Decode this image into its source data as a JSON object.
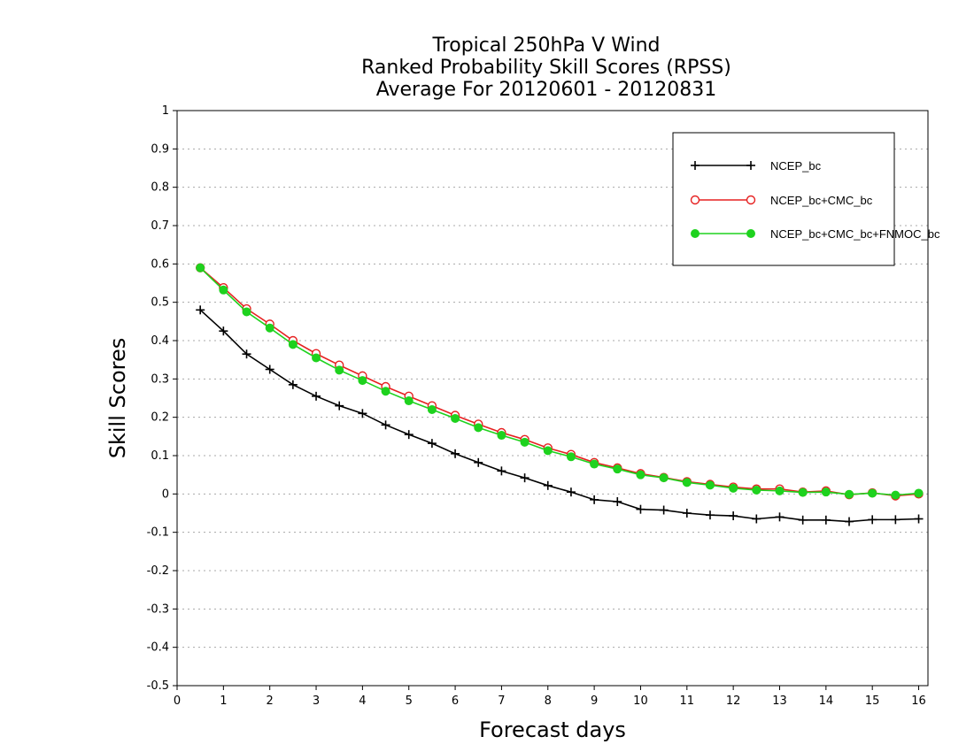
{
  "chart_data": {
    "type": "line",
    "title": [
      "Tropical 250hPa V Wind",
      "Ranked Probability Skill Scores (RPSS)",
      "Average For 20120601 - 20120831"
    ],
    "xlabel": "Forecast days",
    "ylabel": "Skill Scores",
    "xlim": [
      0,
      16.2
    ],
    "ylim": [
      -0.5,
      1
    ],
    "xticks": [
      "0",
      "1",
      "2",
      "3",
      "4",
      "5",
      "6",
      "7",
      "8",
      "9",
      "10",
      "11",
      "12",
      "13",
      "14",
      "15",
      "16"
    ],
    "yticks": [
      "-0.5",
      "-0.4",
      "-0.3",
      "-0.2",
      "-0.1",
      "0",
      "0.1",
      "0.2",
      "0.3",
      "0.4",
      "0.5",
      "0.6",
      "0.7",
      "0.8",
      "0.9",
      "1"
    ],
    "grid": true,
    "legend_position": "top-right",
    "x": [
      0.5,
      1,
      1.5,
      2,
      2.5,
      3,
      3.5,
      4,
      4.5,
      5,
      5.5,
      6,
      6.5,
      7,
      7.5,
      8,
      8.5,
      9,
      9.5,
      10,
      10.5,
      11,
      11.5,
      12,
      12.5,
      13,
      13.5,
      14,
      14.5,
      15,
      15.5,
      16
    ],
    "series": [
      {
        "name": "NCEP_bc",
        "color": "#000000",
        "marker": "plus",
        "values": [
          0.48,
          0.425,
          0.365,
          0.325,
          0.285,
          0.255,
          0.23,
          0.21,
          0.18,
          0.155,
          0.132,
          0.105,
          0.082,
          0.06,
          0.042,
          0.022,
          0.005,
          -0.015,
          -0.02,
          -0.04,
          -0.042,
          -0.05,
          -0.055,
          -0.057,
          -0.065,
          -0.06,
          -0.068,
          -0.068,
          -0.072,
          -0.067,
          -0.067,
          -0.065
        ]
      },
      {
        "name": "NCEP_bc+CMC_bc",
        "color": "#e62020",
        "marker": "open-circle",
        "values": [
          0.59,
          0.538,
          0.483,
          0.443,
          0.4,
          0.366,
          0.336,
          0.308,
          0.28,
          0.255,
          0.23,
          0.205,
          0.182,
          0.16,
          0.142,
          0.12,
          0.103,
          0.082,
          0.068,
          0.053,
          0.043,
          0.032,
          0.025,
          0.018,
          0.013,
          0.013,
          0.005,
          0.008,
          -0.002,
          0.003,
          -0.005,
          0
        ]
      },
      {
        "name": "NCEP_bc+CMC_bc+FNMOC_bc",
        "color": "#1ed21e",
        "marker": "filled-circle",
        "values": [
          0.59,
          0.532,
          0.475,
          0.433,
          0.39,
          0.355,
          0.323,
          0.296,
          0.268,
          0.243,
          0.22,
          0.197,
          0.173,
          0.153,
          0.135,
          0.113,
          0.097,
          0.078,
          0.065,
          0.05,
          0.042,
          0.03,
          0.023,
          0.015,
          0.01,
          0.008,
          0.004,
          0.005,
          -0.001,
          0.002,
          -0.003,
          0.002
        ]
      }
    ]
  }
}
